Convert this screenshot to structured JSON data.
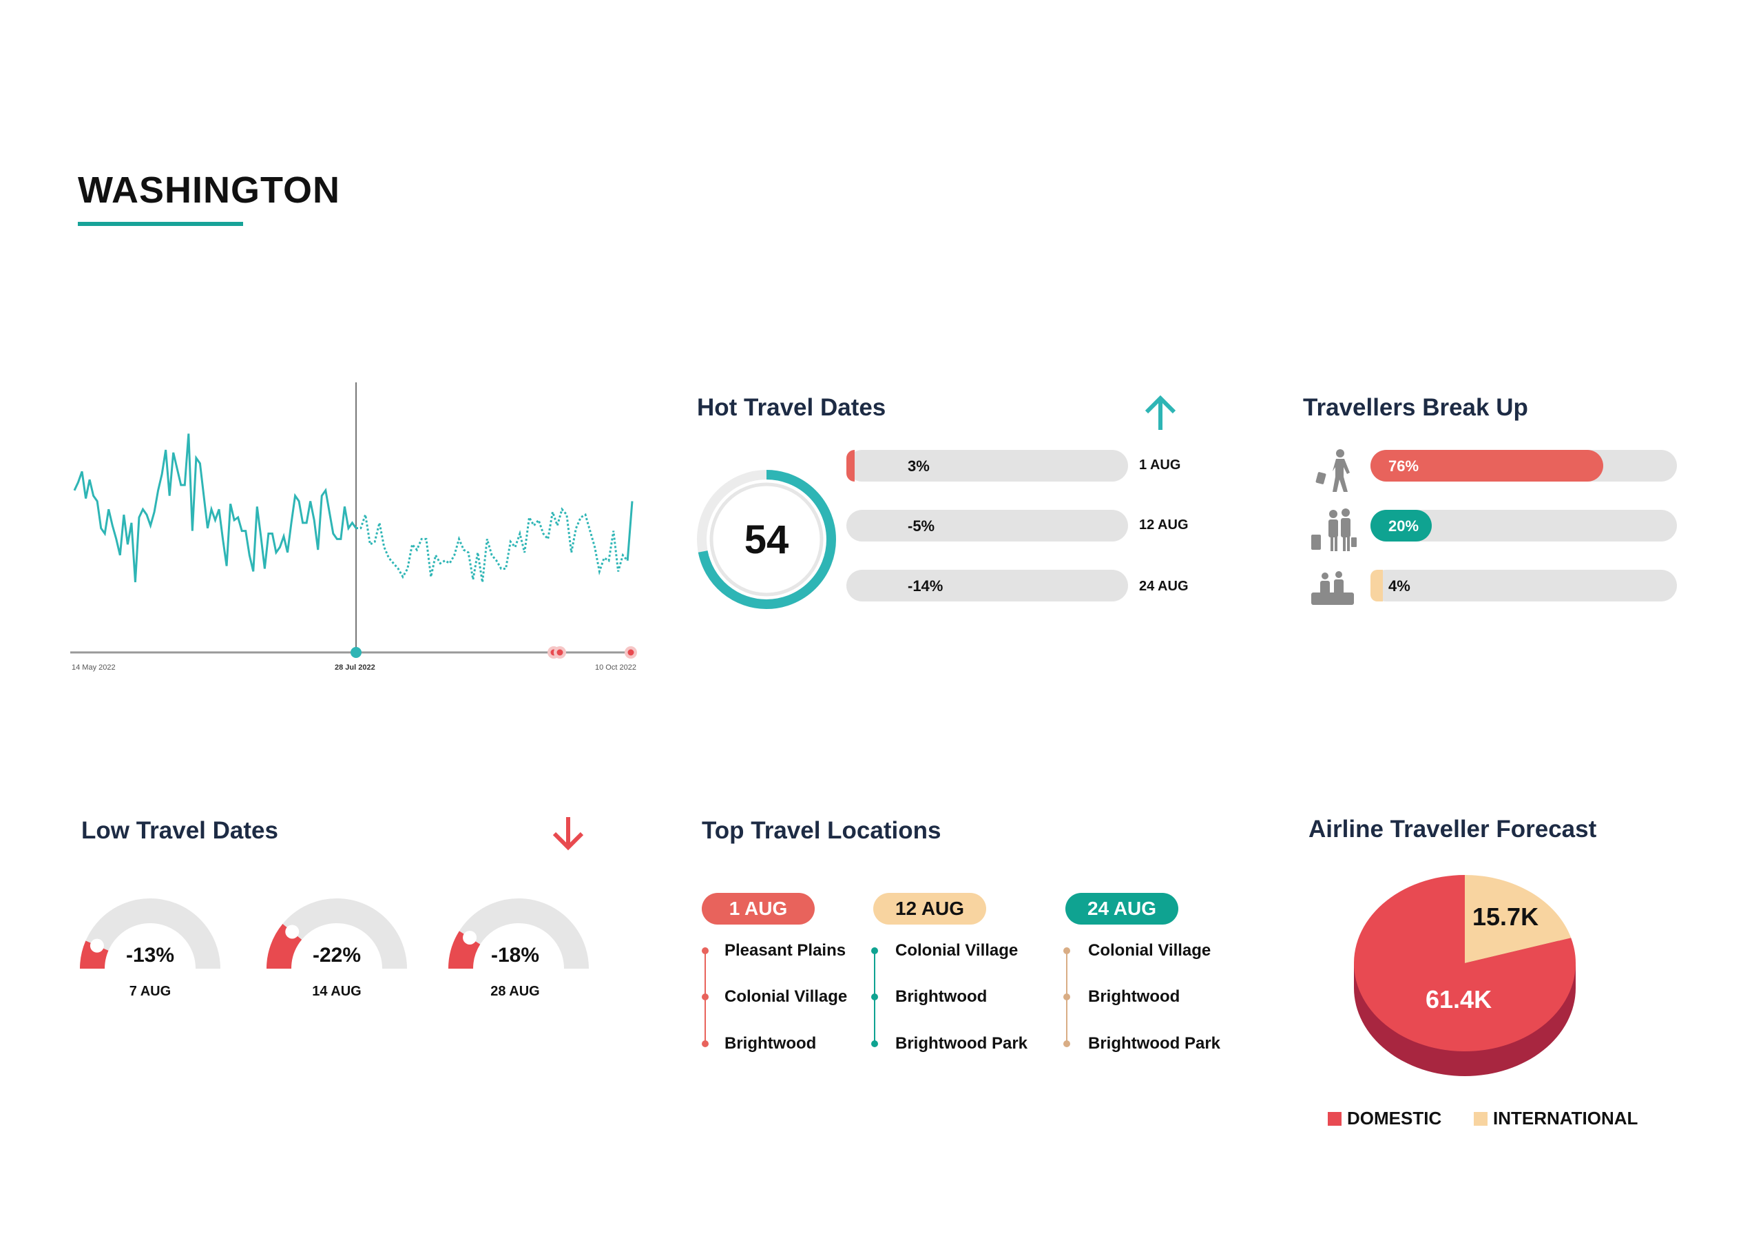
{
  "page": {
    "title": "WASHINGTON"
  },
  "colors": {
    "teal": "#2eb5b5",
    "green": "#0fa391",
    "red": "#e8635c",
    "gauge_red": "#e84a4f",
    "peach": "#f8d4a0",
    "tan": "#d9ad85",
    "gray_track": "#e3e3e3",
    "heading": "#1d2b44",
    "pie_side": "#a82640"
  },
  "chart_data": [
    {
      "type": "line",
      "x_tick_labels": [
        "14 May 2022",
        "28 Jul 2022",
        "10 Oct 2022"
      ],
      "highlight_tick": "28 Jul 2022",
      "grid": false,
      "series": [
        {
          "style": "solid",
          "values": [
            60,
            63,
            67,
            57,
            64,
            58,
            56,
            46,
            44,
            53,
            47,
            42,
            36,
            51,
            40,
            48,
            26,
            50,
            53,
            51,
            47,
            52,
            60,
            66,
            75,
            58,
            74,
            68,
            62,
            62,
            81,
            45,
            72,
            70,
            58,
            46,
            53,
            49,
            53,
            42,
            32,
            55,
            49,
            50,
            45,
            45,
            36,
            30,
            54,
            43,
            31,
            44,
            44,
            37,
            39,
            43,
            37,
            48,
            58,
            56,
            48,
            48,
            56,
            49,
            38,
            58,
            60,
            52,
            44,
            42,
            42,
            54,
            46,
            48,
            46
          ]
        },
        {
          "style": "dotted",
          "values": [
            46,
            51,
            40,
            41,
            48,
            39,
            35,
            33,
            31,
            28,
            31,
            40,
            38,
            42,
            42,
            28,
            36,
            33,
            34,
            33,
            36,
            42,
            38,
            37,
            27,
            37,
            26,
            42,
            36,
            34,
            31,
            31,
            41,
            39,
            44,
            37,
            50,
            47,
            49,
            44,
            42,
            52,
            47,
            53,
            51,
            37,
            46,
            50,
            51,
            45,
            39,
            30,
            35,
            34,
            45,
            30,
            36,
            34,
            56
          ]
        }
      ],
      "axis_markers": [
        {
          "kind": "current",
          "color": "#2eb5b5"
        },
        {
          "kind": "alert",
          "color": "#e84a4f"
        },
        {
          "kind": "alert",
          "color": "#e84a4f"
        },
        {
          "kind": "alert",
          "color": "#e84a4f"
        }
      ]
    },
    {
      "type": "pie",
      "title": "Airline Traveller Forecast",
      "slices": [
        {
          "name": "INTERNATIONAL",
          "value": 15.7,
          "label": "15.7K",
          "color": "#f8d4a0"
        },
        {
          "name": "DOMESTIC",
          "value": 61.4,
          "label": "61.4K",
          "color": "#e84a52"
        }
      ],
      "legend": {
        "placement": "bottom",
        "items": [
          {
            "label": "DOMESTIC",
            "color": "#e84a52"
          },
          {
            "label": "INTERNATIONAL",
            "color": "#f8d4a0"
          }
        ]
      }
    }
  ],
  "hot_travel": {
    "title": "Hot Travel Dates",
    "trend_icon": "arrow-up-icon",
    "score": "54",
    "score_ring_fill": 0.72,
    "rows": [
      {
        "value": "3%",
        "date": "1 AUG",
        "fill": 0.03
      },
      {
        "value": "-5%",
        "date": "12 AUG",
        "fill": 0
      },
      {
        "value": "-14%",
        "date": "24 AUG",
        "fill": 0
      }
    ]
  },
  "travellers": {
    "title": "Travellers Break Up",
    "rows": [
      {
        "icon": "solo-traveller-icon",
        "value": "76%",
        "fill": 0.76,
        "color": "#e8635c"
      },
      {
        "icon": "couple-traveller-icon",
        "value": "20%",
        "fill": 0.2,
        "color": "#0fa391"
      },
      {
        "icon": "family-traveller-icon",
        "value": "4%",
        "fill": 0.04,
        "color": "#f8d4a0"
      }
    ]
  },
  "low_travel": {
    "title": "Low Travel Dates",
    "trend_icon": "arrow-down-icon",
    "gauges": [
      {
        "value": "-13%",
        "date": "7 AUG",
        "fill": 0.13
      },
      {
        "value": "-22%",
        "date": "14 AUG",
        "fill": 0.22
      },
      {
        "value": "-18%",
        "date": "28 AUG",
        "fill": 0.18
      }
    ]
  },
  "top_locations": {
    "title": "Top Travel Locations",
    "columns": [
      {
        "date": "1 AUG",
        "color": "#e8635c",
        "text_color": "#ffffff",
        "items": [
          "Pleasant Plains",
          "Colonial Village",
          "Brightwood"
        ]
      },
      {
        "date": "12 AUG",
        "color": "#f8d4a0",
        "text_color": "#111111",
        "items": [
          "Colonial Village",
          "Brightwood",
          "Brightwood Park"
        ]
      },
      {
        "date": "24 AUG",
        "color": "#0fa391",
        "text_color": "#ffffff",
        "items": [
          "Colonial Village",
          "Brightwood",
          "Brightwood Park"
        ]
      }
    ],
    "line_colors": [
      "#e8635c",
      "#0fa391",
      "#d9ad85"
    ]
  }
}
